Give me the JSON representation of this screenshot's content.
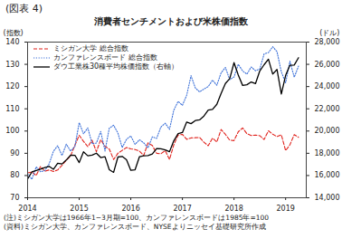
{
  "chart_data": {
    "type": "line",
    "figure_label": "(図表 4)",
    "title": "消費者センチメントおよび米株価指数",
    "y_label": "(指数)",
    "y2_label": "(ドル)",
    "notes": [
      "(注)ミシガン大学は1966年1−3月期=100、カンファレンスボードは1985年=100",
      "(資料)ミシガン大学、カンファレンスボード、NYSEよりニッセイ基礎研究所作成"
    ],
    "legend": "top-left",
    "x": [
      2014,
      2014.083,
      2014.167,
      2014.25,
      2014.333,
      2014.417,
      2014.5,
      2014.583,
      2014.667,
      2014.75,
      2014.833,
      2014.917,
      2015,
      2015.083,
      2015.167,
      2015.25,
      2015.333,
      2015.417,
      2015.5,
      2015.583,
      2015.667,
      2015.75,
      2015.833,
      2015.917,
      2016,
      2016.083,
      2016.167,
      2016.25,
      2016.333,
      2016.417,
      2016.5,
      2016.583,
      2016.667,
      2016.75,
      2016.833,
      2016.917,
      2017,
      2017.083,
      2017.167,
      2017.25,
      2017.333,
      2017.417,
      2017.5,
      2017.583,
      2017.667,
      2017.75,
      2017.833,
      2017.917,
      2018,
      2018.083,
      2018.167,
      2018.25,
      2018.333,
      2018.417,
      2018.5,
      2018.583,
      2018.667,
      2018.75,
      2018.833,
      2018.917,
      2019,
      2019.083,
      2019.167,
      2019.25
    ],
    "xlim": [
      2014,
      2019.4
    ],
    "xticks": [
      2014,
      2015,
      2016,
      2017,
      2018,
      2019
    ],
    "ylim": [
      70,
      140
    ],
    "yticks": [
      70,
      80,
      90,
      100,
      110,
      120,
      130,
      140
    ],
    "y2lim": [
      14000,
      28000
    ],
    "y2ticks": [
      {
        "value": 14000,
        "label": "14,000"
      },
      {
        "value": 16000,
        "label": "16,000"
      },
      {
        "value": 18000,
        "label": "18,000"
      },
      {
        "value": 20000,
        "label": "20,000"
      },
      {
        "value": 22000,
        "label": "22,000"
      },
      {
        "value": 24000,
        "label": "24,000"
      },
      {
        "value": 26000,
        "label": "26,000"
      },
      {
        "value": 28000,
        "label": "28,000"
      }
    ],
    "series": [
      {
        "name": "ミシガン大学 総合指数",
        "color": "#e0211b",
        "line_style": "dashed",
        "values": [
          81.2,
          81.6,
          80.0,
          84.1,
          81.9,
          82.5,
          81.8,
          82.5,
          84.6,
          86.9,
          88.8,
          93.6,
          98.1,
          95.4,
          93.0,
          95.9,
          90.7,
          96.1,
          93.1,
          91.9,
          87.2,
          90.0,
          91.3,
          92.6,
          92.0,
          91.7,
          91.0,
          89.0,
          94.7,
          93.5,
          90.0,
          89.8,
          91.2,
          87.2,
          93.8,
          98.2,
          98.5,
          96.3,
          96.9,
          97.0,
          97.1,
          95.0,
          93.4,
          96.8,
          95.1,
          100.7,
          98.5,
          95.9,
          95.7,
          99.7,
          101.4,
          98.8,
          98.0,
          98.2,
          97.9,
          96.2,
          100.1,
          98.6,
          97.5,
          98.3,
          91.2,
          93.8,
          98.4,
          97.2
        ]
      },
      {
        "name": "カンファレンスボード 総合指数",
        "color": "#3a6fd8",
        "line_style": "dotted",
        "values": [
          80.7,
          78.3,
          83.9,
          81.7,
          82.2,
          85.2,
          90.9,
          93.4,
          89.0,
          94.1,
          91.0,
          93.1,
          103.8,
          98.8,
          101.4,
          94.3,
          94.6,
          99.8,
          91.0,
          101.3,
          102.6,
          99.1,
          92.6,
          96.3,
          97.8,
          94.0,
          96.1,
          94.7,
          92.4,
          97.4,
          96.7,
          101.8,
          103.5,
          100.8,
          109.4,
          113.3,
          111.6,
          116.1,
          124.9,
          119.4,
          117.6,
          118.9,
          120.0,
          122.9,
          120.6,
          126.2,
          128.6,
          123.1,
          124.3,
          130.0,
          127.0,
          125.6,
          128.8,
          127.1,
          127.9,
          134.7,
          135.3,
          137.9,
          135.7,
          126.6,
          121.7,
          131.4,
          124.2,
          129.2
        ]
      },
      {
        "name": "ダウ工業株30種平均株価指数（右軸）",
        "color": "#000000",
        "line_style": "solid",
        "axis": "y2",
        "values": [
          15699,
          16322,
          16458,
          16581,
          16717,
          16827,
          16563,
          17098,
          17043,
          17391,
          17828,
          17823,
          17165,
          18133,
          17776,
          17841,
          18011,
          17620,
          17690,
          16528,
          16285,
          17664,
          17720,
          17425,
          16466,
          16517,
          17685,
          17774,
          17787,
          17930,
          18432,
          18401,
          18308,
          18142,
          19124,
          19763,
          19864,
          20812,
          20663,
          20941,
          21009,
          21350,
          21891,
          21948,
          22405,
          23377,
          24272,
          24719,
          26149,
          25029,
          24103,
          24163,
          24416,
          24271,
          25415,
          25965,
          26458,
          25116,
          25538,
          23327,
          24999,
          25916,
          25929,
          26593
        ]
      }
    ]
  }
}
